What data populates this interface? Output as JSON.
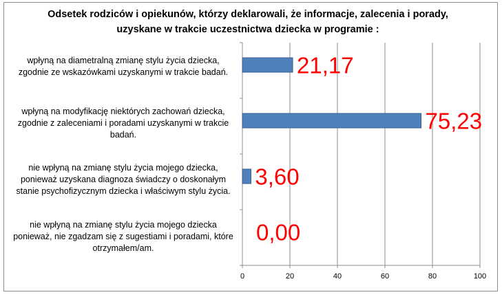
{
  "chart_data": {
    "type": "bar",
    "orientation": "horizontal",
    "title": "Odsetek  rodziców i opiekunów, którzy deklarowali, że informacje, zalecenia i porady, uzyskane  w trakcie uczestnictwa dziecka w programie :",
    "categories": [
      "wpłyną na diametralną zmianę stylu życia dziecka, zgodnie ze wskazówkami uzyskanymi w trakcie badań.",
      "wpłyną na modyfikację  niektórych zachowań dziecka, zgodnie z zaleceniami i poradami uzyskanymi w trakcie badań.",
      "nie wpłyną  na zmianę stylu życia mojego dziecka, ponieważ uzyskana diagnoza świadczy o doskonałym stanie psychofizycznym  dziecka i właściwym stylu życia.",
      "nie wpłyną na zmianę stylu życia mojego dziecka ponieważ, nie zgadzam się z sugestiami i poradami,  które otrzymałem/am."
    ],
    "values": [
      21.17,
      75.23,
      3.6,
      0.0
    ],
    "data_labels": [
      "21,17",
      "75,23",
      "3,60",
      "0,00"
    ],
    "xlim": [
      0,
      100
    ],
    "xticks": [
      0,
      20,
      40,
      60,
      80,
      100
    ],
    "xtick_labels": [
      "0",
      "20",
      "40",
      "60",
      "80",
      "100"
    ],
    "grid": "vertical",
    "legend": "none",
    "colors": {
      "bar": "#4f81bd",
      "bar_edge": "#385d8a",
      "grid": "#8c8c8c",
      "data_label": "#ff0000"
    }
  },
  "labels": {
    "cat0": [
      "wpłyną na diametralną zmianę stylu życia dziecka,",
      "zgodnie ze wskazówkami uzyskanymi w trakcie badań."
    ],
    "cat1": [
      "wpłyną na modyfikację  niektórych zachowań dziecka,",
      "zgodnie z zaleceniami i poradami uzyskanymi w trakcie",
      "badań."
    ],
    "cat2": [
      "nie wpłyną  na zmianę stylu życia mojego dziecka,",
      "ponieważ uzyskana diagnoza świadczy o doskonałym",
      "stanie psychofizycznym  dziecka i właściwym stylu życia."
    ],
    "cat3": [
      "nie wpłyną na zmianę stylu życia mojego dziecka",
      "ponieważ, nie zgadzam się z sugestiami i poradami,  które",
      "otrzymałem/am."
    ]
  }
}
